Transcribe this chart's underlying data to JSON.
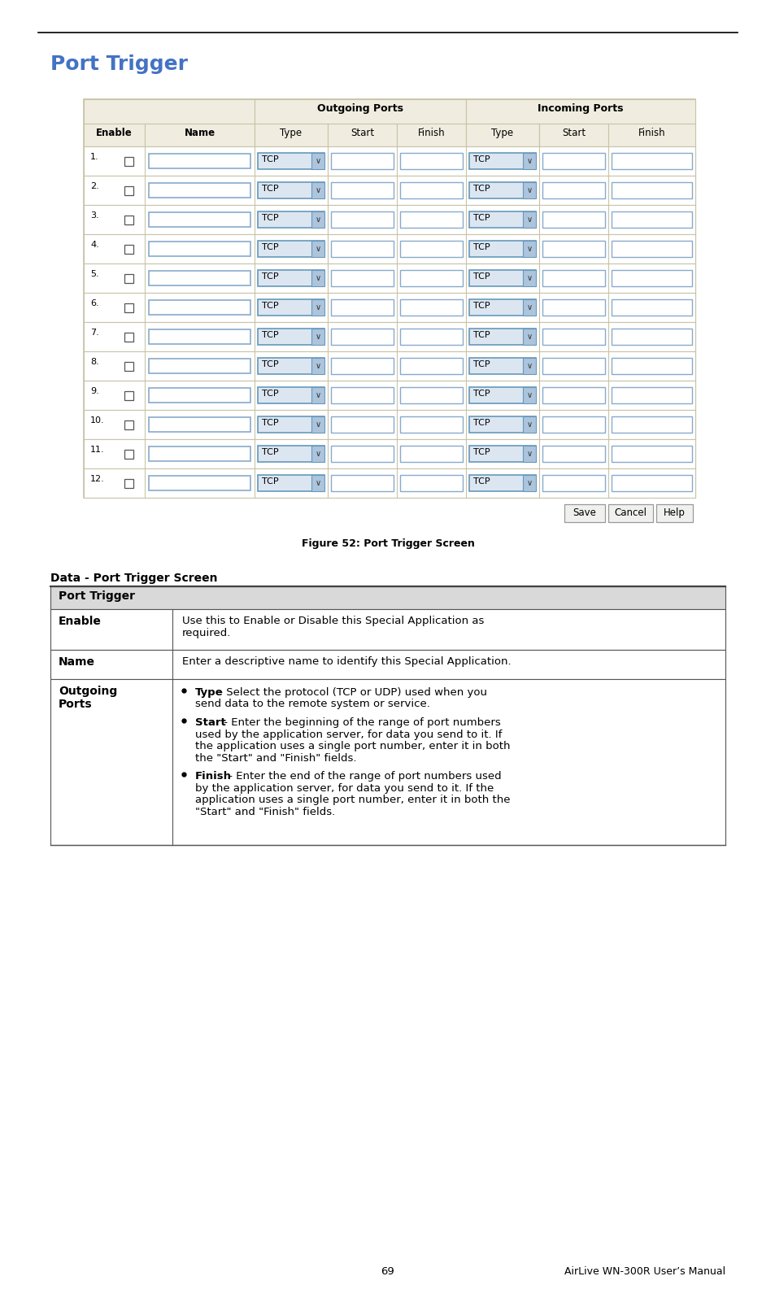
{
  "page_title": "Port Trigger",
  "page_title_color": "#4472C4",
  "figure_caption": "Figure 52: Port Trigger Screen",
  "num_rows": 12,
  "outgoing_label": "Outgoing Ports",
  "incoming_label": "Incoming Ports",
  "col_headers": [
    "Enable",
    "Name",
    "Type",
    "Start",
    "Finish",
    "Type",
    "Start",
    "Finish"
  ],
  "table_bg": "#f0ede0",
  "tcp_bg": "#dce6f1",
  "tcp_border": "#6699bb",
  "tcp_arrow_bg": "#adc4dd",
  "input_border": "#88aacc",
  "table_border": "#c8c4a8",
  "button_bg": "#f0f0ee",
  "button_border": "#999999",
  "data_table_title": "Data - Port Trigger Screen",
  "dt_header_bg": "#d9d9d9",
  "bullet_items": [
    {
      "bold": "Type",
      "line1": " - Select the protocol (TCP or UDP) used when you",
      "rest": [
        "send data to the remote system or service."
      ]
    },
    {
      "bold": "Start",
      "line1": " - Enter the beginning of the range of port numbers",
      "rest": [
        "used by the application server, for data you send to it. If",
        "the application uses a single port number, enter it in both",
        "the \"Start\" and \"Finish\" fields."
      ]
    },
    {
      "bold": "Finish",
      "line1": " - Enter the end of the range of port numbers used",
      "rest": [
        "by the application server, for data you send to it. If the",
        "application uses a single port number, enter it in both the",
        "\"Start\" and \"Finish\" fields."
      ]
    }
  ],
  "footer_page": "69",
  "footer_text": "AirLive WN-300R User’s Manual"
}
